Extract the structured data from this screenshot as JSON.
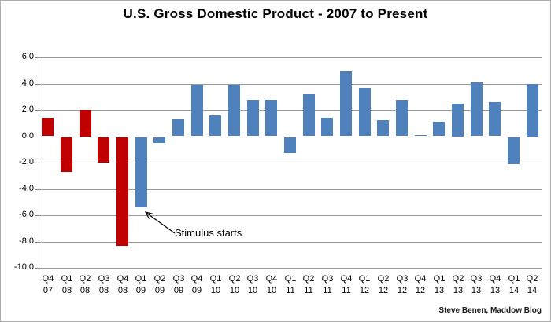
{
  "title": "U.S. Gross Domestic Product - 2007 to Present",
  "credit": "Steve Benen, Maddow Blog",
  "colors": {
    "recession_bar": "#c00000",
    "recovery_bar": "#4f81bd",
    "gridline": "#9a9a9a",
    "axis": "#808080",
    "text": "#000000",
    "background": "#ffffff",
    "frame_border": "#ababab"
  },
  "chart_data": {
    "type": "bar",
    "title": "U.S. Gross Domestic Product - 2007 to Present",
    "xlabel": "",
    "ylabel": "",
    "ylim": [
      -10.0,
      6.0
    ],
    "ytick_step": 2.0,
    "ytick_labels": [
      "6.0",
      "4.0",
      "2.0",
      "0.0",
      "-2.0",
      "-4.0",
      "-6.0",
      "-8.0",
      "-10.0"
    ],
    "grid": true,
    "legend": false,
    "categories": [
      "Q4 07",
      "Q1 08",
      "Q2 08",
      "Q3 08",
      "Q4 08",
      "Q1 09",
      "Q2 09",
      "Q3 09",
      "Q4 09",
      "Q1 10",
      "Q2 10",
      "Q3 10",
      "Q4 10",
      "Q1 11",
      "Q2 11",
      "Q3 11",
      "Q4 11",
      "Q1 12",
      "Q2 12",
      "Q3 12",
      "Q4 12",
      "Q1 13",
      "Q2 13",
      "Q3 13",
      "Q4 13",
      "Q1 14",
      "Q2 14"
    ],
    "values": [
      1.4,
      -2.7,
      2.0,
      -2.0,
      -8.3,
      -5.4,
      -0.5,
      1.3,
      3.9,
      1.6,
      3.9,
      2.8,
      2.8,
      -1.3,
      3.2,
      1.4,
      4.9,
      3.7,
      1.2,
      2.8,
      0.1,
      1.1,
      2.5,
      4.1,
      2.6,
      -2.1,
      4.0
    ],
    "recession_last_index": 4,
    "annotation": {
      "text": "Stimulus starts",
      "points_to": "Q1 09"
    }
  }
}
